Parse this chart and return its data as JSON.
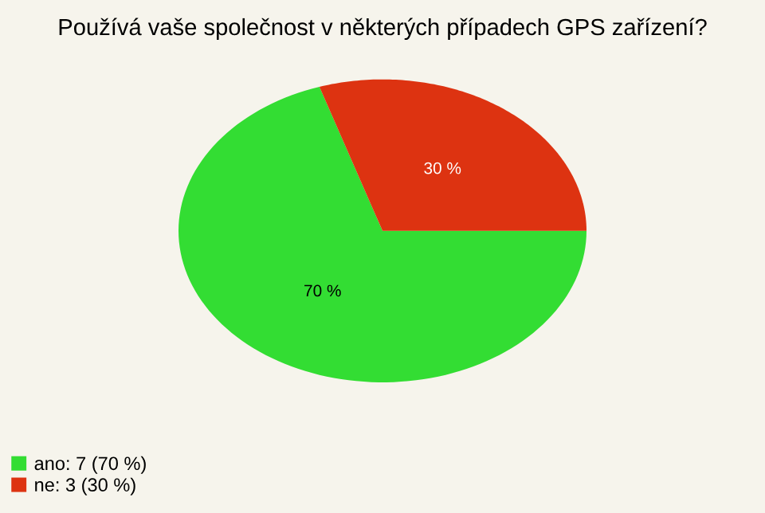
{
  "chart_data": {
    "type": "pie",
    "title": "Používá vaše společnost v některých případech GPS zařízení?",
    "categories": [
      "ano: 7 (70 %)",
      "ne: 3 (30 %)"
    ],
    "values": [
      70,
      30
    ],
    "colors": [
      "#33dd33",
      "#dd3311"
    ],
    "value_labels": [
      "70 %",
      "30 %"
    ],
    "legend": "bottom left"
  }
}
